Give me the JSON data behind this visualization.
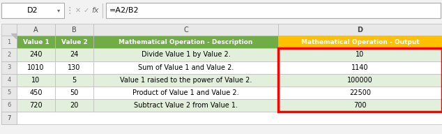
{
  "formula_bar_cell": "D2",
  "formula_bar_formula": "=A2/B2",
  "header_row": {
    "A": "Value 1",
    "B": "Value 2",
    "C": "Mathematical Operation - Description",
    "D": "Mathematical Operation - Output"
  },
  "rows": [
    {
      "A": "240",
      "B": "24",
      "C": "Divide Value 1 by Value 2.",
      "D": "10"
    },
    {
      "A": "1010",
      "B": "130",
      "C": "Sum of Value 1 and Value 2.",
      "D": "1140"
    },
    {
      "A": "10",
      "B": "5",
      "C": "Value 1 raised to the power of Value 2.",
      "D": "100000"
    },
    {
      "A": "450",
      "B": "50",
      "C": "Product of Value 1 and Value 2.",
      "D": "22500"
    },
    {
      "A": "720",
      "B": "20",
      "C": "Subtract Value 2 from Value 1.",
      "D": "700"
    }
  ],
  "header_bg_AB": "#70AD47",
  "header_bg_C": "#70AD47",
  "header_bg_D": "#FFC000",
  "header_text_color": "#FFFFFF",
  "alt_row_bg": "#E2EFDA",
  "white_row_bg": "#FFFFFF",
  "selected_cell_border": "#FF0000",
  "col_header_bg": "#E8E8E8",
  "row_num_bg": "#F0F0F0",
  "grid_color": "#C0C0C0",
  "formula_bar_bg": "#FFFFFF",
  "outer_bg": "#F2F2F2"
}
